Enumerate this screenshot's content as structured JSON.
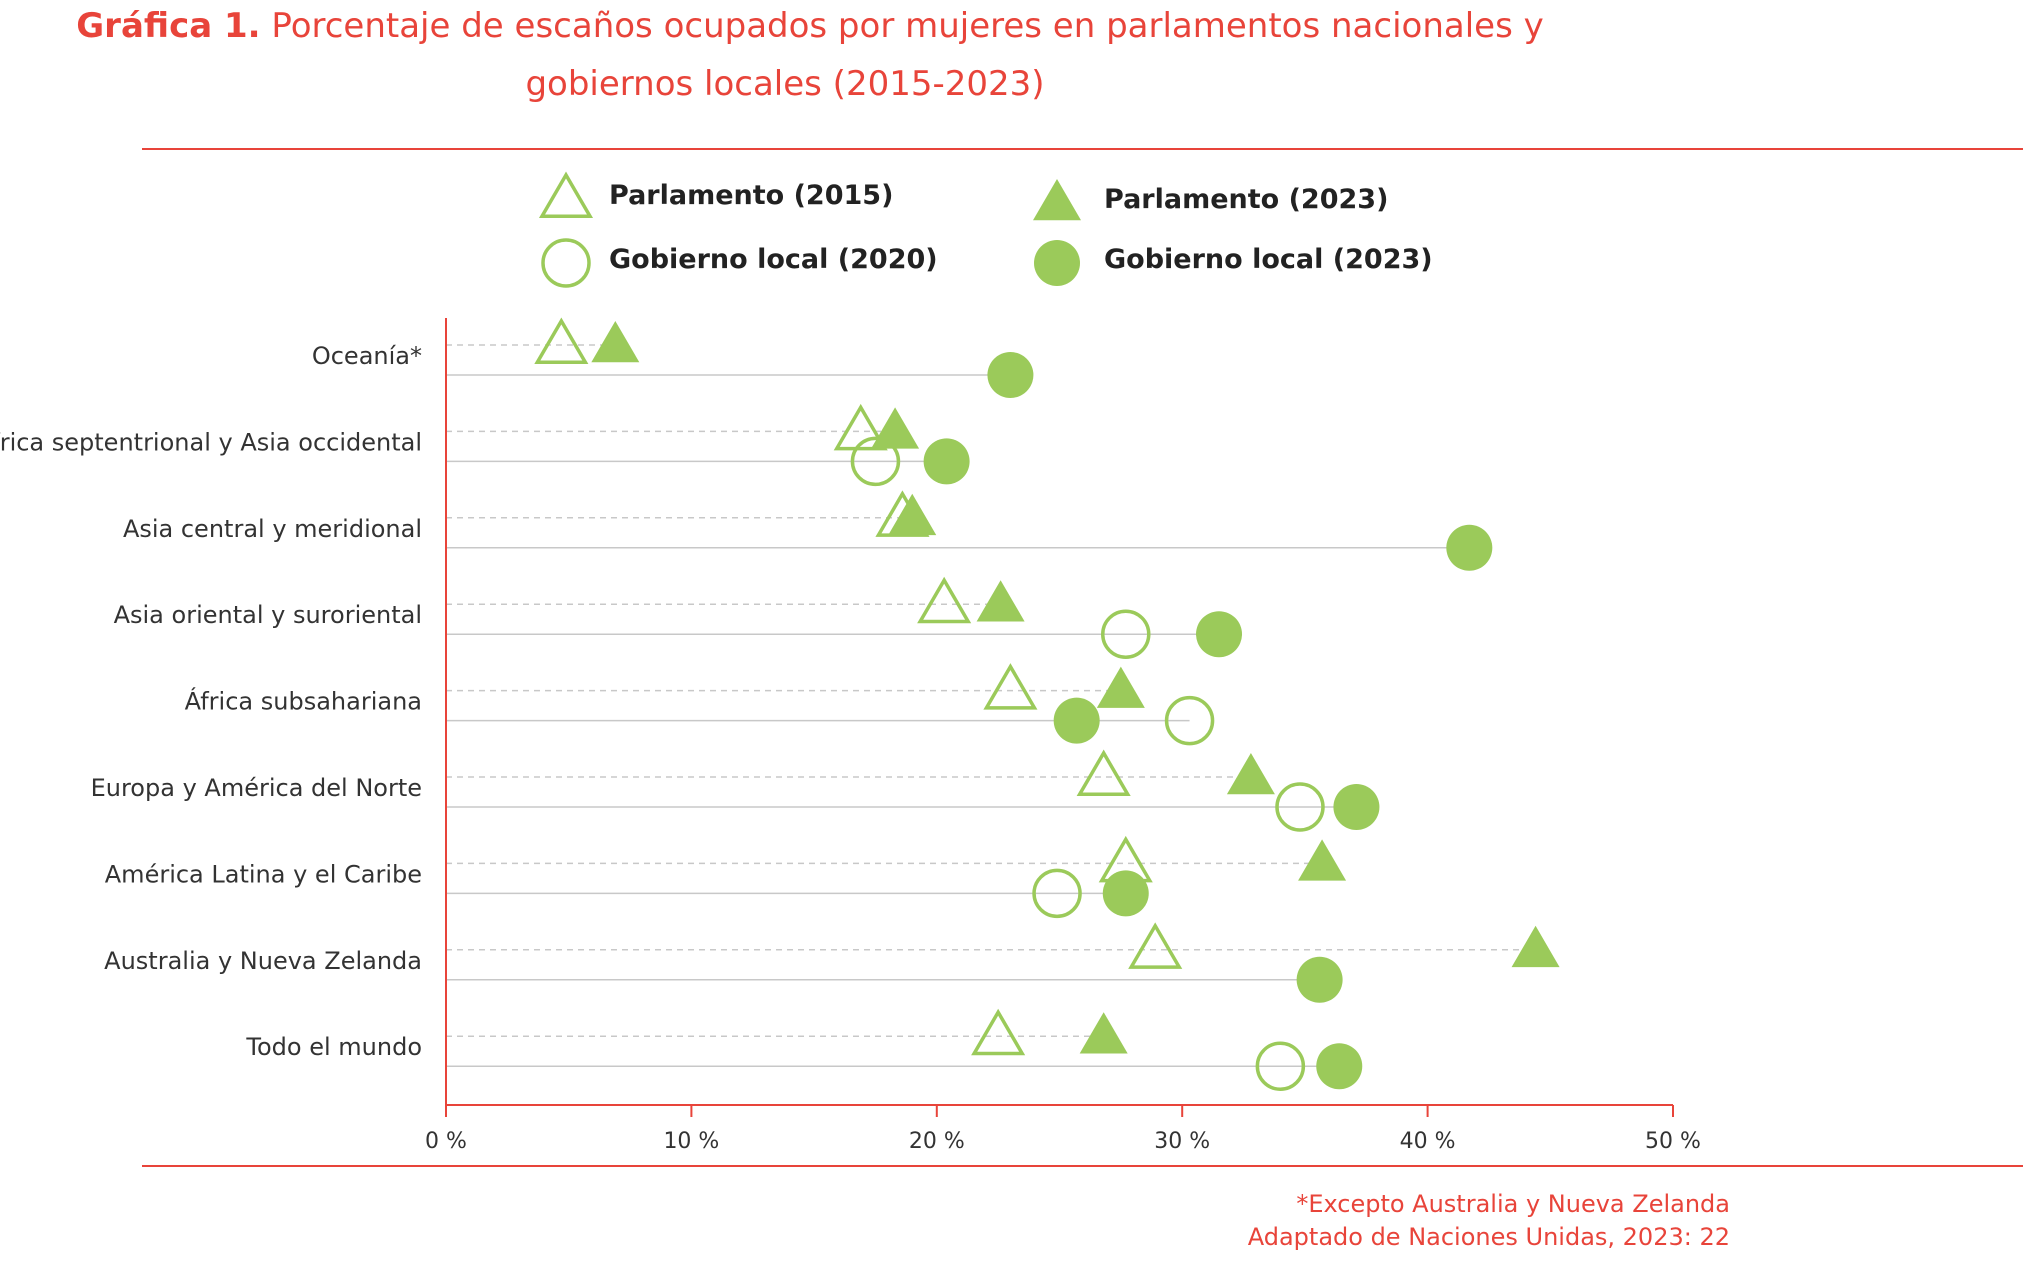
{
  "title": {
    "prefix": "Gráfica 1.",
    "line1": "Porcentaje de escaños ocupados por mujeres en parlamentos nacionales y",
    "line2": "gobiernos locales (2015-2023)"
  },
  "footer": {
    "note": "*Excepto Australia y Nueva Zelanda",
    "source": "Adaptado de Naciones Unidas, 2023: 22"
  },
  "colors": {
    "accent": "#e8443a",
    "marker": "#9bca5a",
    "grid": "#c8c8c8"
  },
  "chart_data": {
    "type": "scatter",
    "orientation": "horizontal-dot-plot",
    "xlim": [
      0,
      50
    ],
    "xticks": [
      0,
      10,
      20,
      30,
      40,
      50
    ],
    "xtick_labels": [
      "0 %",
      "10 %",
      "20 %",
      "30 %",
      "40 %",
      "50 %"
    ],
    "legend_placement": "top",
    "categories": [
      "Oceanía*",
      "África septentrional y Asia occidental",
      "Asia central y meridional",
      "Asia oriental y suroriental",
      "África subsahariana",
      "Europa y América del Norte",
      "América Latina y el Caribe",
      "Australia y Nueva Zelanda",
      "Todo el mundo"
    ],
    "series": [
      {
        "name": "Parlamento (2015)",
        "marker": "triangle-open",
        "row": "upper",
        "values": [
          4.7,
          16.9,
          18.6,
          20.3,
          23.0,
          26.8,
          27.7,
          28.9,
          22.5
        ]
      },
      {
        "name": "Parlamento (2023)",
        "marker": "triangle-filled",
        "row": "upper",
        "values": [
          6.9,
          18.3,
          19.0,
          22.6,
          27.5,
          32.8,
          35.7,
          44.4,
          26.8
        ]
      },
      {
        "name": "Gobierno local (2020)",
        "marker": "circle-open",
        "row": "lower",
        "values": [
          null,
          17.5,
          null,
          27.7,
          30.3,
          34.8,
          24.9,
          null,
          34.0
        ]
      },
      {
        "name": "Gobierno local (2023)",
        "marker": "circle-filled",
        "row": "lower",
        "values": [
          23.0,
          20.4,
          41.7,
          31.5,
          25.7,
          37.1,
          27.7,
          35.6,
          36.4
        ]
      }
    ]
  }
}
